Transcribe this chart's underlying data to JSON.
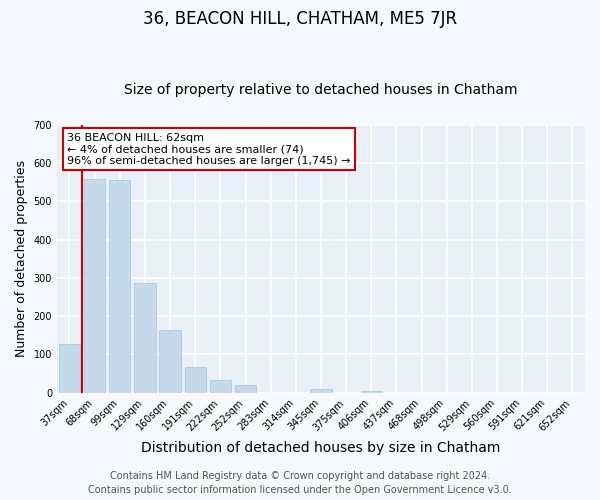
{
  "title": "36, BEACON HILL, CHATHAM, ME5 7JR",
  "subtitle": "Size of property relative to detached houses in Chatham",
  "xlabel": "Distribution of detached houses by size in Chatham",
  "ylabel": "Number of detached properties",
  "bar_labels": [
    "37sqm",
    "68sqm",
    "99sqm",
    "129sqm",
    "160sqm",
    "191sqm",
    "222sqm",
    "252sqm",
    "283sqm",
    "314sqm",
    "345sqm",
    "375sqm",
    "406sqm",
    "437sqm",
    "468sqm",
    "498sqm",
    "529sqm",
    "560sqm",
    "591sqm",
    "621sqm",
    "652sqm"
  ],
  "bar_values": [
    128,
    558,
    555,
    286,
    165,
    68,
    33,
    20,
    0,
    0,
    11,
    0,
    5,
    0,
    0,
    0,
    0,
    0,
    0,
    0,
    0
  ],
  "bar_color": "#c5d9ea",
  "bar_edge_color": "#a8c5de",
  "annotation_text": "36 BEACON HILL: 62sqm\n← 4% of detached houses are smaller (74)\n96% of semi-detached houses are larger (1,745) →",
  "annotation_box_facecolor": "#ffffff",
  "annotation_box_edgecolor": "#cc0000",
  "property_line_color": "#cc0000",
  "property_line_x": 0.5,
  "ylim": [
    0,
    700
  ],
  "yticks": [
    0,
    100,
    200,
    300,
    400,
    500,
    600,
    700
  ],
  "footer_line1": "Contains HM Land Registry data © Crown copyright and database right 2024.",
  "footer_line2": "Contains public sector information licensed under the Open Government Licence v3.0.",
  "background_color": "#f5f8fc",
  "plot_bg_color": "#e8eff7",
  "grid_color": "#ffffff",
  "title_fontsize": 12,
  "subtitle_fontsize": 10,
  "axis_label_fontsize": 9,
  "tick_fontsize": 7,
  "footer_fontsize": 7,
  "annotation_fontsize": 8
}
